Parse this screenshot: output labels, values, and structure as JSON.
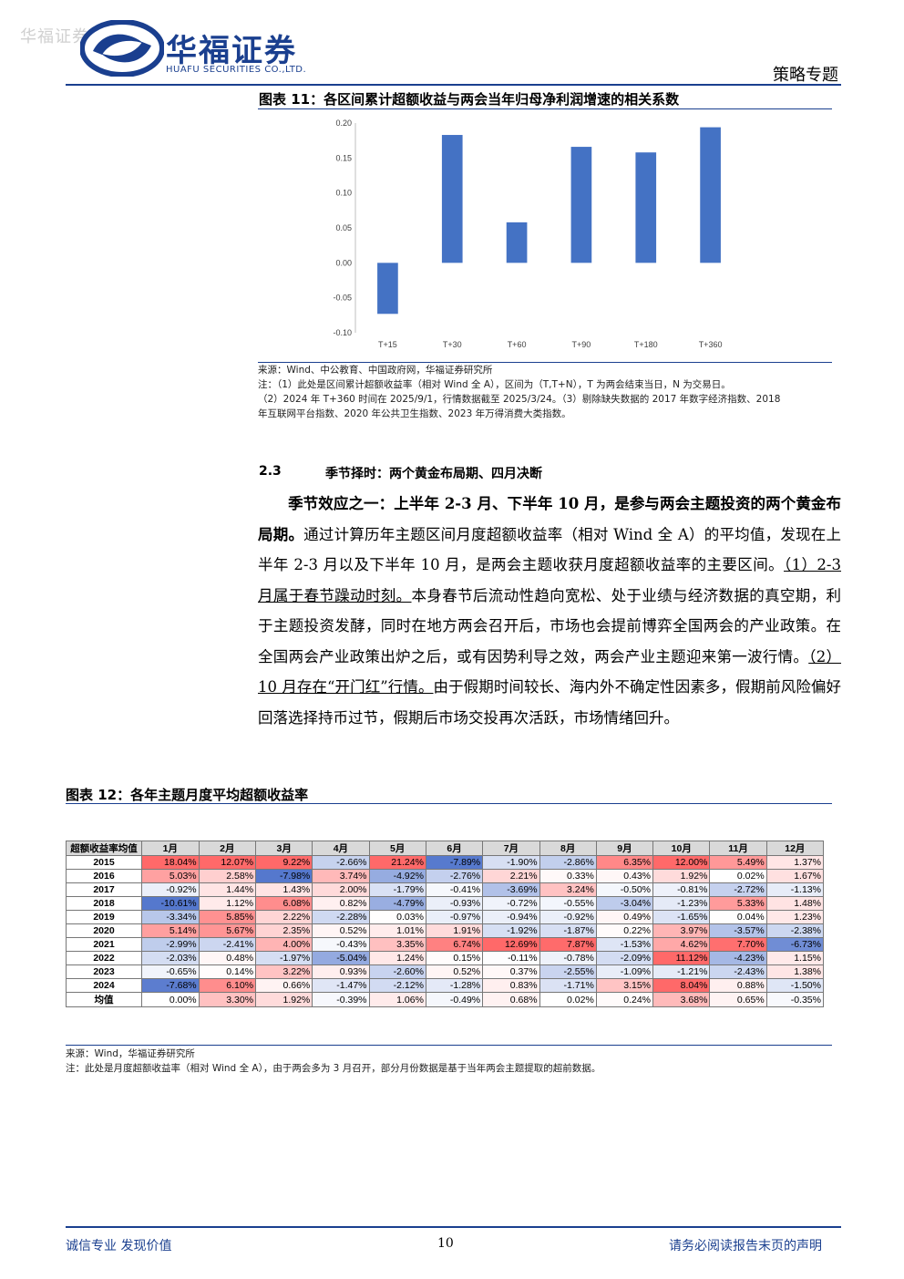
{
  "header": {
    "watermark": "华福证券",
    "logo_cn": "华福证券",
    "logo_en": "HUAFU SECURITIES CO.,LTD.",
    "report_type": "策略专题",
    "brand_color": "#1a3f8f"
  },
  "figure11": {
    "title": "图表 11：各区间累计超额收益与两会当年归母净利润增速的相关系数",
    "source": "来源：Wind、中公教育、中国政府网，华福证券研究所",
    "note1": "注：（1）此处是区间累计超额收益率（相对 Wind 全 A），区间为（T,T+N），T 为两会结束当日，N 为交易日。",
    "note2": "（2）2024 年 T+360 时间在 2025/9/1，行情数据截至 2025/3/24。（3）剔除缺失数据的 2017 年数字经济指数、2018",
    "note3": "年互联网平台指数、2020 年公共卫生指数、2023 年万得消费大类指数。"
  },
  "chart_data": {
    "type": "bar",
    "categories": [
      "T+15",
      "T+30",
      "T+60",
      "T+90",
      "T+180",
      "T+360"
    ],
    "values": [
      -0.073,
      0.183,
      0.058,
      0.166,
      0.158,
      0.194
    ],
    "ylim": [
      -0.1,
      0.2
    ],
    "yticks": [
      "0.20",
      "0.15",
      "0.10",
      "0.05",
      "0.00",
      "-0.05",
      "-0.10"
    ],
    "bar_color": "#4472c4",
    "grid": false
  },
  "section": {
    "number": "2.3",
    "title": "季节择时：两个黄金布局期、四月决断"
  },
  "body": {
    "lead_bold": "季节效应之一：上半年 2-3 月、下半年 10 月，是参与两会主题投资的两个黄金布局期。",
    "text1": "通过计算历年主题区间月度超额收益率（相对 Wind 全 A）的平均值，发现在上半年 2-3 月以及下半年 10 月，是两会主题收获月度超额收益率的主要区间。",
    "ul1": "（1）2-3 月属于春节躁动时刻。",
    "text2": "本身春节后流动性趋向宽松、处于业绩与经济数据的真空期，利于主题投资发酵，同时在地方两会召开后，市场也会提前博弈全国两会的产业政策。在全国两会产业政策出炉之后，或有因势利导之效，两会产业主题迎来第一波行情。",
    "ul2": "（2）10 月存在“开门红”行情。",
    "text3": "由于假期时间较长、海内外不确定性因素多，假期前风险偏好回落选择持币过节，假期后市场交投再次活跃，市场情绪回升。"
  },
  "figure12": {
    "title": "图表 12：各年主题月度平均超额收益率",
    "corner": "超额收益率均值",
    "months": [
      "1月",
      "2月",
      "3月",
      "4月",
      "5月",
      "6月",
      "7月",
      "8月",
      "9月",
      "10月",
      "11月",
      "12月"
    ],
    "rows": [
      {
        "year": "2015",
        "cells": [
          "18.04%",
          "12.07%",
          "9.22%",
          "-2.66%",
          "21.24%",
          "-7.89%",
          "-1.90%",
          "-2.86%",
          "6.35%",
          "12.00%",
          "5.49%",
          "1.37%"
        ]
      },
      {
        "year": "2016",
        "cells": [
          "5.03%",
          "2.58%",
          "-7.98%",
          "3.74%",
          "-4.92%",
          "-2.76%",
          "2.21%",
          "0.33%",
          "0.43%",
          "1.92%",
          "0.02%",
          "1.67%"
        ]
      },
      {
        "year": "2017",
        "cells": [
          "-0.92%",
          "1.44%",
          "1.43%",
          "2.00%",
          "-1.79%",
          "-0.41%",
          "-3.69%",
          "3.24%",
          "-0.50%",
          "-0.81%",
          "-2.72%",
          "-1.13%"
        ]
      },
      {
        "year": "2018",
        "cells": [
          "-10.61%",
          "1.12%",
          "6.08%",
          "0.82%",
          "-4.79%",
          "-0.93%",
          "-0.72%",
          "-0.55%",
          "-3.04%",
          "-1.23%",
          "5.33%",
          "1.48%"
        ]
      },
      {
        "year": "2019",
        "cells": [
          "-3.34%",
          "5.85%",
          "2.22%",
          "-2.28%",
          "0.03%",
          "-0.97%",
          "-0.94%",
          "-0.92%",
          "0.49%",
          "-1.65%",
          "0.04%",
          "1.23%"
        ]
      },
      {
        "year": "2020",
        "cells": [
          "5.14%",
          "5.67%",
          "2.35%",
          "0.52%",
          "1.01%",
          "1.91%",
          "-1.92%",
          "-1.87%",
          "0.22%",
          "3.97%",
          "-3.57%",
          "-2.38%"
        ]
      },
      {
        "year": "2021",
        "cells": [
          "-2.99%",
          "-2.41%",
          "4.00%",
          "-0.43%",
          "3.35%",
          "6.74%",
          "12.69%",
          "7.87%",
          "-1.53%",
          "4.62%",
          "7.70%",
          "-6.73%"
        ]
      },
      {
        "year": "2022",
        "cells": [
          "-2.03%",
          "0.48%",
          "-1.97%",
          "-5.04%",
          "1.24%",
          "0.15%",
          "-0.11%",
          "-0.78%",
          "-2.09%",
          "11.12%",
          "-4.23%",
          "1.15%"
        ]
      },
      {
        "year": "2023",
        "cells": [
          "-0.65%",
          "0.14%",
          "3.22%",
          "0.93%",
          "-2.60%",
          "0.52%",
          "0.37%",
          "-2.55%",
          "-1.09%",
          "-1.21%",
          "-2.43%",
          "1.38%"
        ]
      },
      {
        "year": "2024",
        "cells": [
          "-7.68%",
          "6.10%",
          "0.66%",
          "-1.47%",
          "-2.12%",
          "-1.28%",
          "0.83%",
          "-1.71%",
          "3.15%",
          "8.04%",
          "0.88%",
          "-1.50%"
        ]
      },
      {
        "year": "均值",
        "cells": [
          "0.00%",
          "3.30%",
          "1.92%",
          "-0.39%",
          "1.06%",
          "-0.49%",
          "0.68%",
          "0.02%",
          "0.24%",
          "3.68%",
          "0.65%",
          "-0.35%"
        ]
      }
    ],
    "source": "来源：Wind，华福证券研究所",
    "note": "注：此处是月度超额收益率（相对 Wind 全 A），由于两会多为 3 月召开，部分月份数据是基于当年两会主题提取的超前数据。"
  },
  "footer": {
    "left": "诚信专业  发现价值",
    "page": "10",
    "right": "请务必阅读报告末页的声明"
  }
}
